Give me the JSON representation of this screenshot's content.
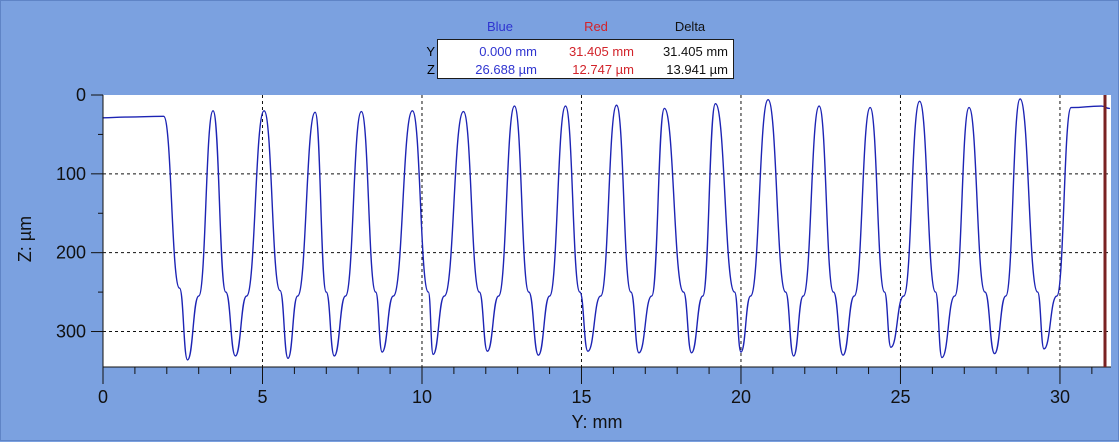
{
  "chart_data": {
    "type": "line",
    "xlabel": "Y:  mm",
    "ylabel": "Z:  µm",
    "xlim": [
      0,
      31.6
    ],
    "ylim": [
      0,
      345
    ],
    "y_axis_inverted": true,
    "grid": true,
    "x_ticks": [
      "0",
      "5",
      "10",
      "15",
      "20",
      "25",
      "30"
    ],
    "y_ticks": [
      "0",
      "100",
      "200",
      "300"
    ],
    "colors": {
      "background": "#7ba1e0",
      "plot_area": "#ffffff",
      "series": "#1d24b4",
      "blue": "#2f34d0",
      "red": "#d2232a",
      "delta": "#111111",
      "cursor_red": "#7a2222"
    },
    "series": [
      {
        "x": [
          0,
          0.7,
          1.9,
          2.4,
          2.65,
          3.0,
          3.45,
          3.85,
          4.15,
          4.5,
          5.05,
          5.55,
          5.8,
          6.1,
          6.65,
          7.0,
          7.25,
          7.6,
          8.1,
          8.55,
          8.75,
          9.1,
          9.7,
          10.2,
          10.35,
          10.7,
          11.3,
          11.8,
          12.05,
          12.4,
          12.9,
          13.35,
          13.65,
          14.0,
          14.5,
          14.95,
          15.2,
          15.6,
          16.1,
          16.55,
          16.8,
          17.2,
          17.6,
          18.2,
          18.45,
          18.8,
          19.2,
          19.8,
          20.0,
          20.3,
          20.85,
          21.4,
          21.65,
          21.95,
          22.45,
          22.9,
          23.2,
          23.55,
          24.05,
          24.5,
          24.7,
          25.1,
          25.6,
          26.1,
          26.3,
          26.7,
          27.15,
          27.65,
          27.95,
          28.3,
          28.75,
          29.3,
          29.5,
          29.9,
          30.35,
          31.3,
          31.55
        ],
        "y": [
          29,
          28,
          27,
          245,
          336,
          255,
          20,
          250,
          331,
          255,
          20,
          248,
          334,
          255,
          22,
          250,
          331,
          255,
          21,
          250,
          326,
          255,
          20,
          250,
          329,
          255,
          21,
          250,
          325,
          255,
          14,
          250,
          330,
          255,
          14,
          250,
          325,
          255,
          13,
          250,
          327,
          255,
          17,
          250,
          327,
          255,
          11,
          250,
          326,
          255,
          6,
          250,
          331,
          255,
          14,
          250,
          330,
          255,
          16,
          250,
          320,
          255,
          8,
          250,
          333,
          255,
          16,
          250,
          328,
          255,
          5,
          250,
          322,
          255,
          16,
          14,
          17
        ]
      }
    ],
    "readout": {
      "headers": {
        "blue": "Blue",
        "red": "Red",
        "delta": "Delta"
      },
      "rows": [
        {
          "label": "Y",
          "blue": "0.000 mm",
          "red": "31.405 mm",
          "delta": "31.405 mm"
        },
        {
          "label": "Z",
          "blue": "26.688 µm",
          "red": "12.747 µm",
          "delta": "13.941 µm"
        }
      ]
    }
  }
}
